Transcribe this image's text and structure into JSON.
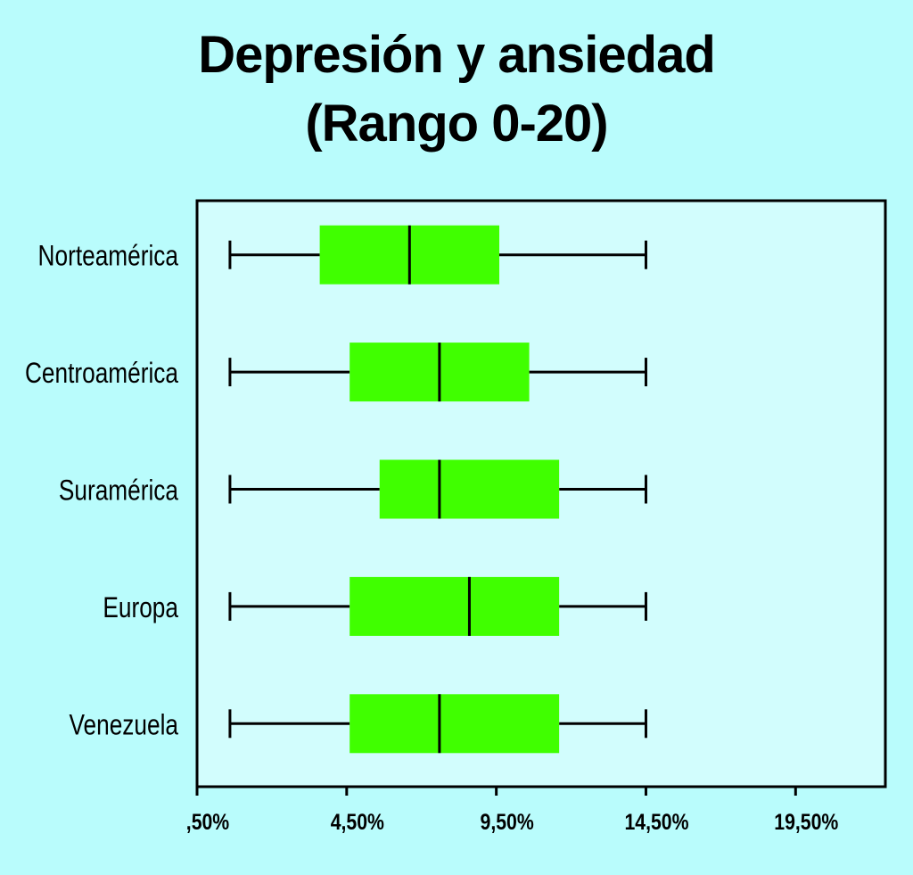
{
  "chart_data": {
    "type": "boxplot",
    "orientation": "horizontal",
    "title": "Depresión y ansiedad",
    "subtitle": "(Rango 0-20)",
    "xlabel": "",
    "ylabel": "",
    "xlim": [
      -0.5,
      22.5
    ],
    "xticks": [
      -0.5,
      4.5,
      9.5,
      14.5,
      19.5
    ],
    "xtick_labels": [
      ",50%",
      "4,50%",
      "9,50%",
      "14,50%",
      "19,50%"
    ],
    "grid": false,
    "categories": [
      "Norteamérica",
      "Centroamérica",
      "Suramérica",
      "Europa",
      "Venezuela"
    ],
    "boxes": [
      {
        "min": 0.6,
        "q1": 3.6,
        "median": 6.6,
        "q3": 9.6,
        "max": 14.5
      },
      {
        "min": 0.6,
        "q1": 4.6,
        "median": 7.6,
        "q3": 10.6,
        "max": 14.5
      },
      {
        "min": 0.6,
        "q1": 5.6,
        "median": 7.6,
        "q3": 11.6,
        "max": 14.5
      },
      {
        "min": 0.6,
        "q1": 4.6,
        "median": 8.6,
        "q3": 11.6,
        "max": 14.5
      },
      {
        "min": 0.6,
        "q1": 4.6,
        "median": 7.6,
        "q3": 11.6,
        "max": 14.5
      }
    ],
    "colors": {
      "box": "#40ff00",
      "background": "#b9fcfc",
      "plot_background": "#d2fdfd",
      "line": "#000000"
    }
  }
}
